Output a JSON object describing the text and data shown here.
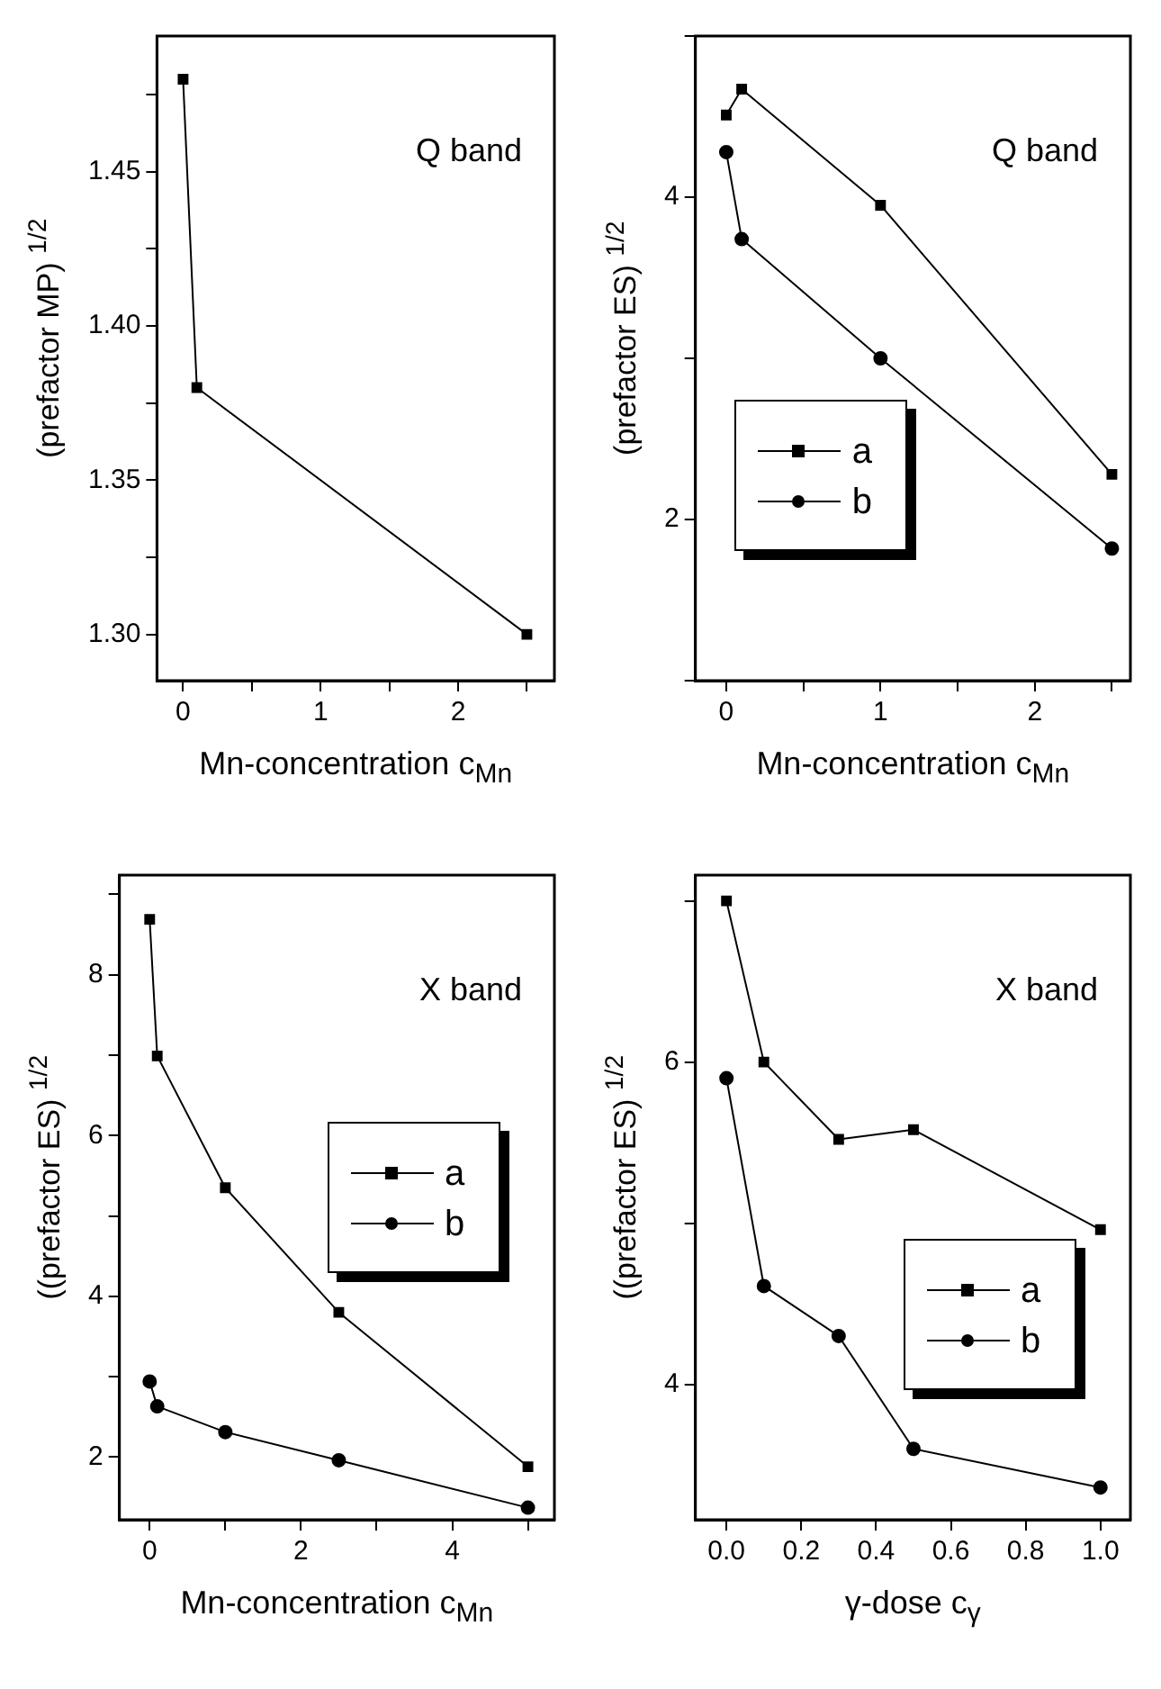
{
  "chart_data": [
    {
      "type": "line",
      "ylabel": "(prefactor MP) $^{1/2}$",
      "xlabel": "Mn-concentration c$_{Mn}$",
      "annotations": [
        "Q band"
      ],
      "x": [
        0,
        0.1,
        2.5
      ],
      "values": [
        1.48,
        1.38,
        1.3
      ],
      "color": "#000000",
      "marker": "square",
      "xlim": [
        -0.19,
        2.7
      ],
      "xticks": [
        0,
        {
          "value": 0.5,
          "label": null
        },
        1,
        {
          "value": 1.5,
          "label": null
        },
        2,
        {
          "value": 2.5,
          "label": null
        }
      ],
      "ylim": [
        1.285,
        1.494
      ],
      "yticks": [
        {
          "value": 1.3,
          "label": "1.30"
        },
        {
          "value": 1.325,
          "label": null
        },
        1.35,
        {
          "value": 1.375,
          "label": null
        },
        {
          "value": 1.4,
          "label": "1.40"
        },
        {
          "value": 1.425,
          "label": null
        },
        1.45,
        {
          "value": 1.475,
          "label": null
        }
      ]
    },
    {
      "type": "line",
      "ylabel": "(prefactor ES) $^{1/2}$",
      "xlabel": "Mn-concentration c$_{Mn}$",
      "annotations": [
        "Q band"
      ],
      "legend": "bottom left",
      "x": [
        0,
        0.1,
        1,
        2.5
      ],
      "series": [
        {
          "name": "a",
          "color": "#000000",
          "marker": "square",
          "values": [
            4.51,
            4.67,
            3.95,
            2.28
          ]
        },
        {
          "name": "b",
          "color": "#000000",
          "marker": "circle",
          "values": [
            4.28,
            3.74,
            3.0,
            1.82
          ]
        }
      ],
      "xlim": [
        -0.2,
        2.62
      ],
      "xticks": [
        0,
        {
          "value": 0.5,
          "label": null
        },
        1,
        {
          "value": 1.5,
          "label": null
        },
        2,
        {
          "value": 2.5,
          "label": null
        }
      ],
      "ylim": [
        1,
        5
      ],
      "yticks": [
        {
          "value": 1,
          "label": null
        },
        2,
        {
          "value": 3,
          "label": null
        },
        4,
        {
          "value": 5,
          "label": null
        }
      ]
    },
    {
      "type": "line",
      "ylabel": "((prefactor ES) $^{1/2}$",
      "xlabel": "Mn-concentration c$_{Mn}$",
      "annotations": [
        "X band"
      ],
      "legend": "right",
      "x": [
        0,
        0.1,
        1,
        2.5,
        5
      ],
      "series": [
        {
          "name": "a",
          "color": "#000000",
          "marker": "square",
          "values": [
            8.69,
            6.99,
            5.35,
            3.8,
            1.88
          ]
        },
        {
          "name": "b",
          "color": "#000000",
          "marker": "circle",
          "values": [
            2.94,
            2.63,
            2.31,
            1.96,
            1.37
          ]
        }
      ],
      "xlim": [
        -0.4,
        5.35
      ],
      "xticks": [
        0,
        {
          "value": 1,
          "label": null
        },
        2,
        {
          "value": 3,
          "label": null
        },
        4,
        {
          "value": 5,
          "label": null
        }
      ],
      "ylim": [
        1.22,
        9.24
      ],
      "yticks": [
        2,
        {
          "value": 3,
          "label": null
        },
        4,
        {
          "value": 5,
          "label": null
        },
        6,
        {
          "value": 7,
          "label": null
        },
        8,
        {
          "value": 9,
          "label": null
        }
      ]
    },
    {
      "type": "line",
      "ylabel": "((prefactor ES) $^{1/2}$",
      "xlabel": "γ-dose c$_{γ}$",
      "annotations": [
        "X band"
      ],
      "legend": "bottom right",
      "x": [
        0,
        0.1,
        0.3,
        0.5,
        1
      ],
      "series": [
        {
          "name": "a",
          "color": "#000000",
          "marker": "square",
          "values": [
            7.0,
            6.0,
            5.52,
            5.58,
            4.96
          ]
        },
        {
          "name": "b",
          "color": "#000000",
          "marker": "circle",
          "values": [
            5.9,
            4.61,
            4.3,
            3.6,
            3.36
          ]
        }
      ],
      "xlim": [
        -0.083,
        1.08
      ],
      "xticks": [
        {
          "value": 0,
          "label": "0.0"
        },
        0.2,
        0.4,
        0.6,
        0.8,
        {
          "value": 1,
          "label": "1.0"
        }
      ],
      "ylim": [
        3.16,
        7.16
      ],
      "yticks": [
        4,
        {
          "value": 5,
          "label": null
        },
        6,
        {
          "value": 7,
          "label": null
        }
      ]
    }
  ]
}
